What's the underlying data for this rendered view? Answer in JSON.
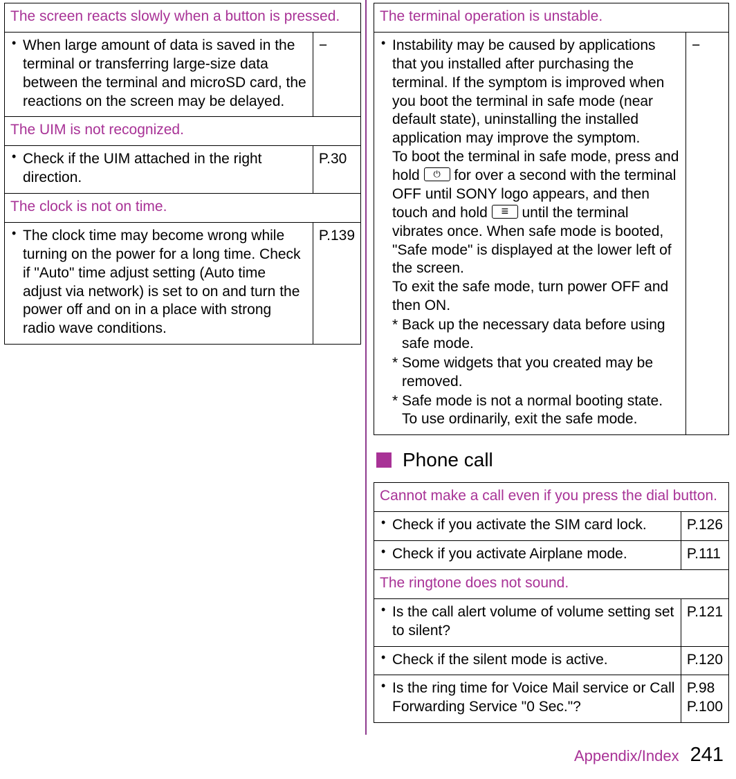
{
  "colors": {
    "accent": "#a83296",
    "divider": "#8e3a8e",
    "text": "#000000",
    "border": "#000000",
    "background": "#ffffff"
  },
  "left": {
    "screen_slow": {
      "header": "The screen reacts slowly when a button is pressed.",
      "item1": "When large amount of data is saved in the terminal or transferring large-size data between the terminal and microSD card, the reactions on the screen may be delayed.",
      "ref1": "−"
    },
    "uim": {
      "header": "The UIM is not recognized.",
      "item1": "Check if the UIM attached in the right direction.",
      "ref1": "P.30"
    },
    "clock": {
      "header": "The clock is not on time.",
      "item1": "The clock time may become wrong while turning on the power for a long time. Check if \"Auto\" time adjust setting (Auto time adjust via network) is set to on and turn the power off and on in a place with strong radio wave conditions.",
      "ref1": "P.139"
    }
  },
  "right": {
    "unstable": {
      "header": "The terminal operation is unstable.",
      "item1_p1": "Instability may be caused by applications that you installed after purchasing the terminal. If the symptom is improved when you boot the terminal in safe mode (near default state), uninstalling the installed application may improve the symptom.",
      "item1_p2a": "To boot the terminal in safe mode, press and hold ",
      "item1_p2b": " for over a second with the terminal OFF until SONY logo appears, and then touch and hold ",
      "item1_p2c": " until the terminal vibrates once. When safe mode is booted, \"Safe mode\" is displayed at the lower left of the screen.",
      "item1_p3": "To exit the safe mode, turn power OFF and then ON.",
      "note1": "* Back up the necessary data before using safe mode.",
      "note2": "* Some widgets that you created may be removed.",
      "note3": "* Safe mode is not a normal booting state. To use ordinarily, exit the safe mode.",
      "ref1": "−"
    },
    "section_phone": "Phone call",
    "cannot_call": {
      "header": "Cannot make a call even if you press the dial button.",
      "item1": "Check if you activate the SIM card lock.",
      "ref1": "P.126",
      "item2": "Check if you activate Airplane mode.",
      "ref2": "P.111"
    },
    "ringtone": {
      "header": "The ringtone does not sound.",
      "item1": "Is the call alert volume of volume setting set to silent?",
      "ref1": "P.121",
      "item2": "Check if the silent mode is active.",
      "ref2": "P.120",
      "item3": "Is the ring time for Voice Mail service or Call Forwarding Service \"0 Sec.\"?",
      "ref3a": "P.98",
      "ref3b": "P.100"
    }
  },
  "footer": {
    "label": "Appendix/Index",
    "page": "241"
  }
}
